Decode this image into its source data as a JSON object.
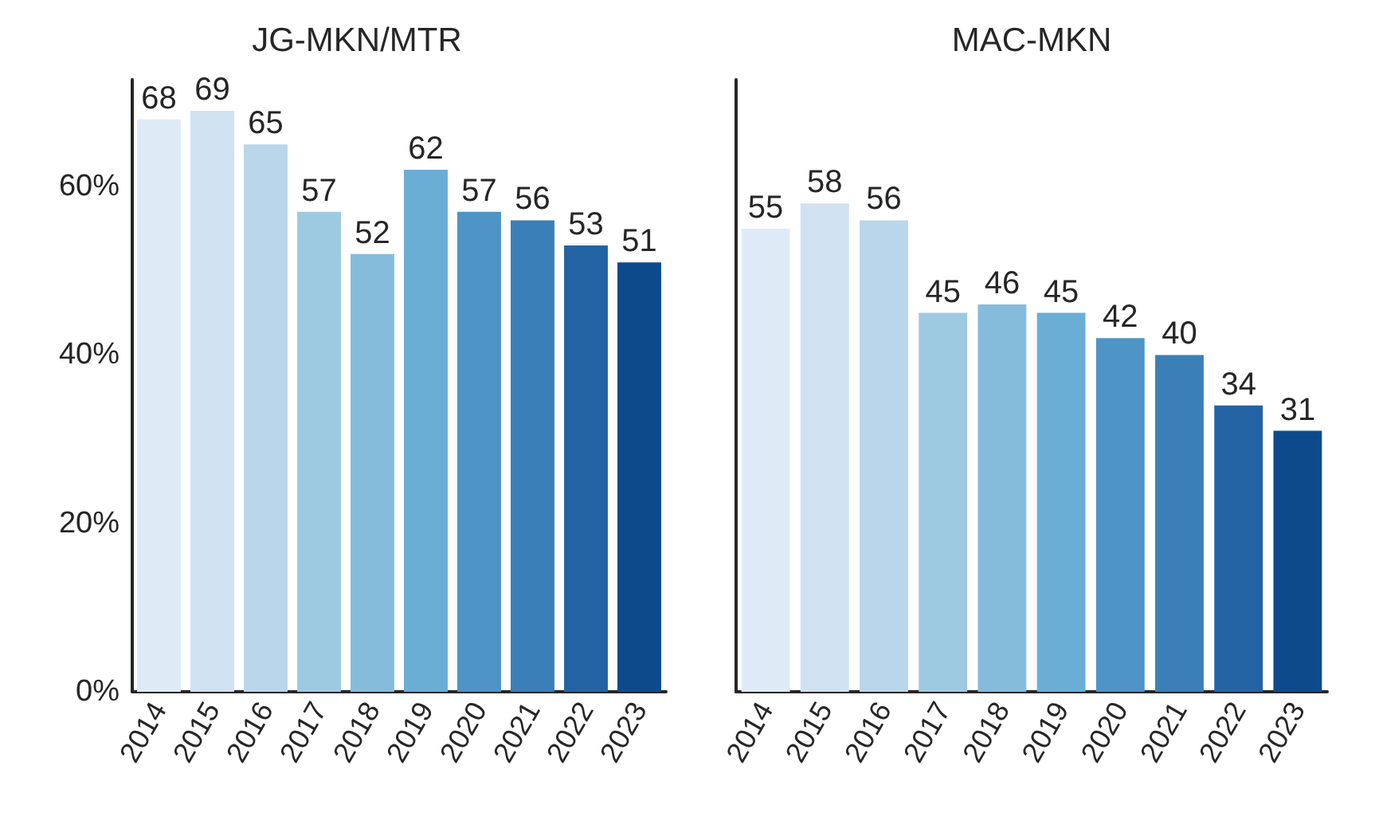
{
  "chart_data": [
    {
      "type": "bar",
      "title": "JG-MKN/MTR",
      "categories": [
        "2014",
        "2015",
        "2016",
        "2017",
        "2018",
        "2019",
        "2020",
        "2021",
        "2022",
        "2023"
      ],
      "values": [
        68,
        69,
        65,
        57,
        52,
        62,
        57,
        56,
        53,
        51
      ],
      "colors": [
        "#deebf7",
        "#d0e1f2",
        "#bad6eb",
        "#9ecae1",
        "#85bcdc",
        "#6aaed6",
        "#4e94c6",
        "#3a7fb8",
        "#2363a3",
        "#0d4a8c"
      ],
      "ylim": [
        0,
        72.7
      ],
      "yticks": [
        {
          "value": 0,
          "label": "0%"
        },
        {
          "value": 20,
          "label": "20%"
        },
        {
          "value": 40,
          "label": "40%"
        },
        {
          "value": 60,
          "label": "60%"
        }
      ],
      "grid": false,
      "data_labels": true
    },
    {
      "type": "bar",
      "title": "MAC-MKN",
      "categories": [
        "2014",
        "2015",
        "2016",
        "2017",
        "2018",
        "2019",
        "2020",
        "2021",
        "2022",
        "2023"
      ],
      "values": [
        55,
        58,
        56,
        45,
        46,
        45,
        42,
        40,
        34,
        31
      ],
      "colors": [
        "#deebf7",
        "#d0e1f2",
        "#bad6eb",
        "#9ecae1",
        "#85bcdc",
        "#6aaed6",
        "#4e94c6",
        "#3a7fb8",
        "#2363a3",
        "#0d4a8c"
      ],
      "ylim": [
        0,
        72.7
      ],
      "grid": false,
      "data_labels": true,
      "tick_labels": "x"
    }
  ]
}
